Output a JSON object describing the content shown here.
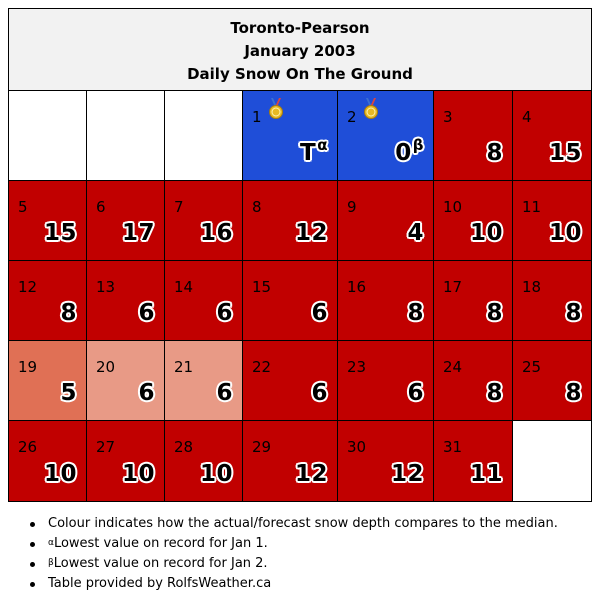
{
  "header": {
    "station": "Toronto-Pearson",
    "month": "January 2003",
    "title": "Daily Snow On The Ground"
  },
  "colors": {
    "above_median": "#c10000",
    "record_low": "#1f4ed8",
    "slightly_below": "#e07055",
    "below": "#e89a86",
    "empty": "#ffffff"
  },
  "days": [
    {
      "day": "1",
      "value": "T",
      "note": "α",
      "status": "record_low",
      "medal": "medal-icon"
    },
    {
      "day": "2",
      "value": "0",
      "note": "β",
      "status": "record_low",
      "medal": "medal-icon"
    },
    {
      "day": "3",
      "value": "8",
      "status": "above_median"
    },
    {
      "day": "4",
      "value": "15",
      "status": "above_median"
    },
    {
      "day": "5",
      "value": "15",
      "status": "above_median"
    },
    {
      "day": "6",
      "value": "17",
      "status": "above_median"
    },
    {
      "day": "7",
      "value": "16",
      "status": "above_median"
    },
    {
      "day": "8",
      "value": "12",
      "status": "above_median"
    },
    {
      "day": "9",
      "value": "4",
      "status": "above_median"
    },
    {
      "day": "10",
      "value": "10",
      "status": "above_median"
    },
    {
      "day": "11",
      "value": "10",
      "status": "above_median"
    },
    {
      "day": "12",
      "value": "8",
      "status": "above_median"
    },
    {
      "day": "13",
      "value": "6",
      "status": "above_median"
    },
    {
      "day": "14",
      "value": "6",
      "status": "above_median"
    },
    {
      "day": "15",
      "value": "6",
      "status": "above_median"
    },
    {
      "day": "16",
      "value": "8",
      "status": "above_median"
    },
    {
      "day": "17",
      "value": "8",
      "status": "above_median"
    },
    {
      "day": "18",
      "value": "8",
      "status": "above_median"
    },
    {
      "day": "19",
      "value": "5",
      "status": "slightly_below"
    },
    {
      "day": "20",
      "value": "6",
      "status": "below"
    },
    {
      "day": "21",
      "value": "6",
      "status": "below"
    },
    {
      "day": "22",
      "value": "6",
      "status": "above_median"
    },
    {
      "day": "23",
      "value": "6",
      "status": "above_median"
    },
    {
      "day": "24",
      "value": "8",
      "status": "above_median"
    },
    {
      "day": "25",
      "value": "8",
      "status": "above_median"
    },
    {
      "day": "26",
      "value": "10",
      "status": "above_median"
    },
    {
      "day": "27",
      "value": "10",
      "status": "above_median"
    },
    {
      "day": "28",
      "value": "10",
      "status": "above_median"
    },
    {
      "day": "29",
      "value": "12",
      "status": "above_median"
    },
    {
      "day": "30",
      "value": "12",
      "status": "above_median"
    },
    {
      "day": "31",
      "value": "11",
      "status": "above_median"
    }
  ],
  "notes": [
    {
      "marker": "",
      "text": "Colour indicates how the actual/forecast snow depth compares to the median."
    },
    {
      "marker": "α",
      "text": "Lowest value on record for Jan 1."
    },
    {
      "marker": "β",
      "text": "Lowest value on record for Jan 2."
    },
    {
      "marker": "",
      "text": "Table provided by RolfsWeather.ca"
    }
  ]
}
